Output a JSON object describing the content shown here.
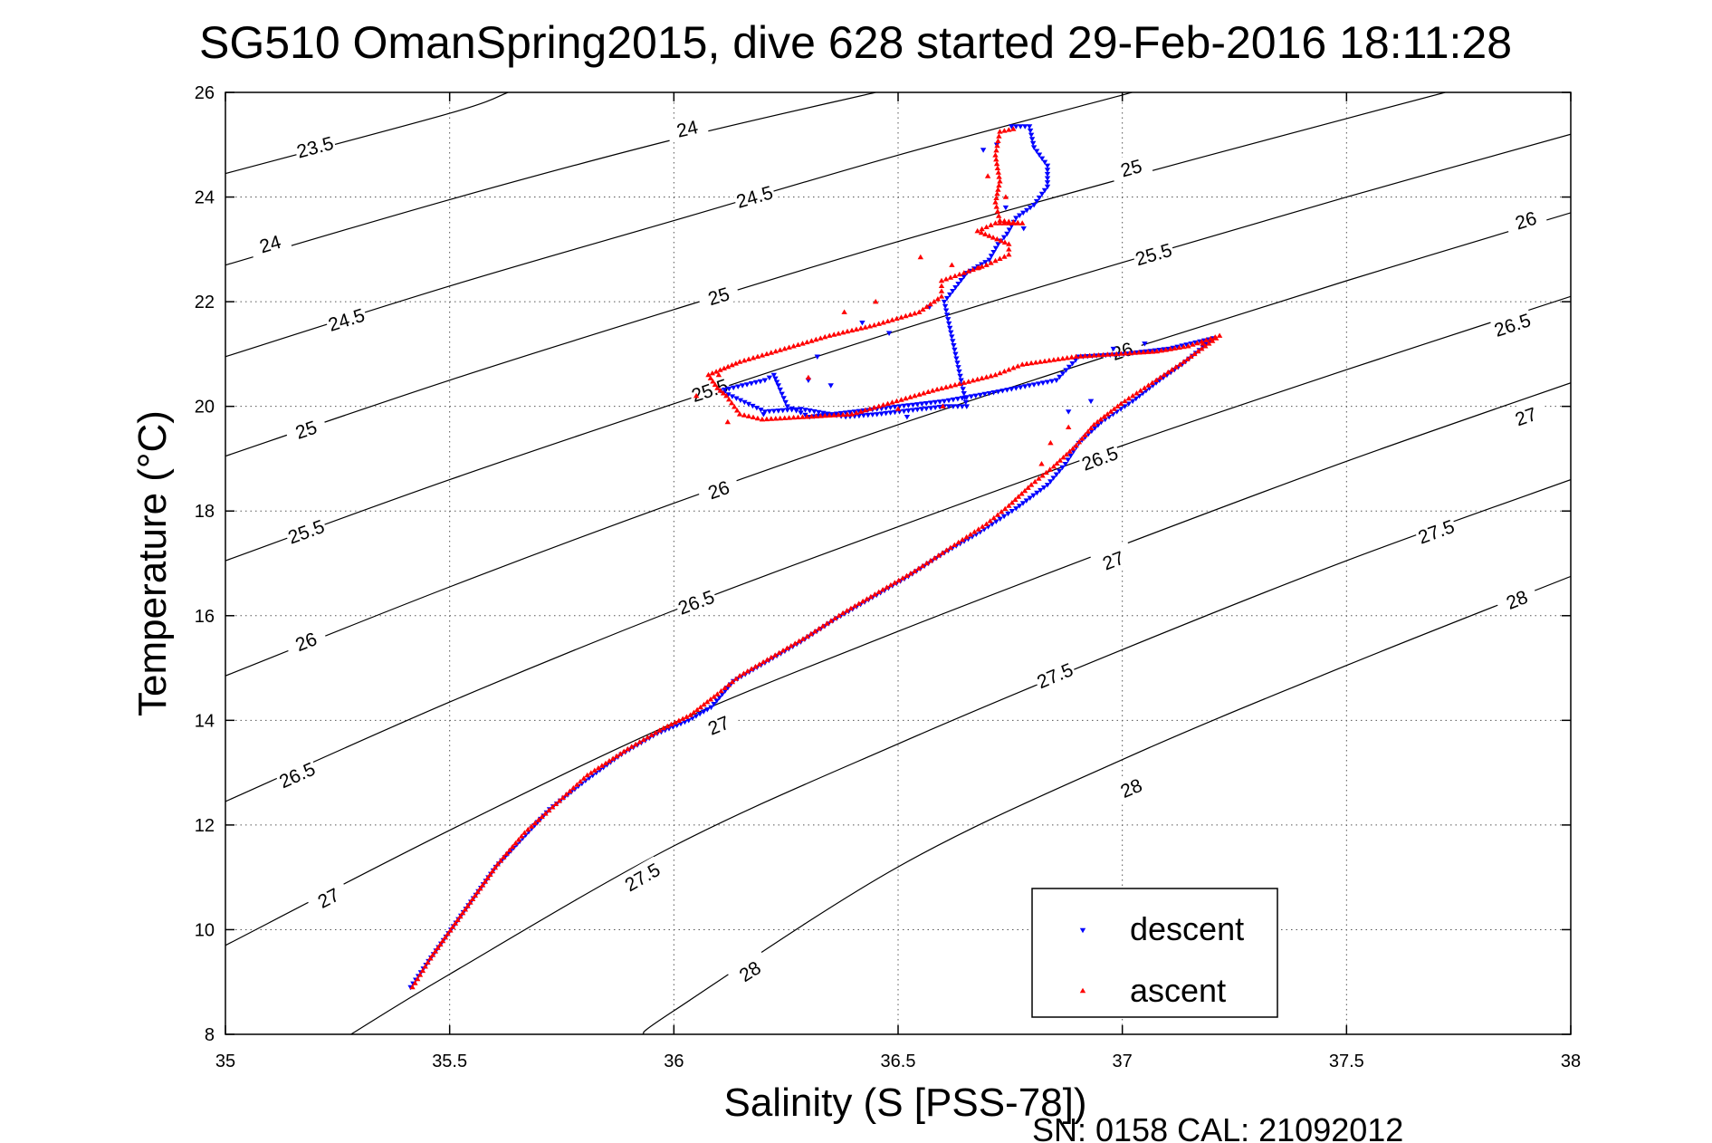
{
  "chart_data": {
    "type": "scatter",
    "title": "SG510 OmanSpring2015, dive 628 started 29-Feb-2016 18:11:28",
    "xlabel": "Salinity (S [PSS-78])",
    "ylabel": "Temperature (°C)",
    "xlim": [
      35,
      38
    ],
    "ylim": [
      8,
      26
    ],
    "xticks": [
      35,
      35.5,
      36,
      36.5,
      37,
      37.5,
      38
    ],
    "xtick_labels": [
      "35",
      "35.5",
      "36",
      "36.5",
      "37",
      "37.5",
      "38"
    ],
    "yticks": [
      8,
      10,
      12,
      14,
      16,
      18,
      20,
      22,
      24,
      26
    ],
    "ytick_labels": [
      "8",
      "10",
      "12",
      "14",
      "16",
      "18",
      "20",
      "22",
      "24",
      "26"
    ],
    "grid": true,
    "legend_position": "bottom-right",
    "footnote": "SN: 0158  CAL: 21092012",
    "density_contours": [
      {
        "level": "23.5",
        "points": [
          [
            35,
            24.45
          ],
          [
            35.5,
            25.6
          ],
          [
            35.63,
            26
          ]
        ],
        "labels": [
          [
            35.2,
            24.95
          ]
        ]
      },
      {
        "level": "24",
        "points": [
          [
            35,
            22.7
          ],
          [
            35.5,
            23.95
          ],
          [
            36,
            25.1
          ],
          [
            36.45,
            26
          ]
        ],
        "labels": [
          [
            35.1,
            23.1
          ],
          [
            36.03,
            25.3
          ]
        ]
      },
      {
        "level": "24.5",
        "points": [
          [
            35,
            20.95
          ],
          [
            35.5,
            22.3
          ],
          [
            36,
            23.55
          ],
          [
            36.5,
            24.8
          ],
          [
            37,
            25.95
          ],
          [
            37.02,
            26
          ]
        ],
        "labels": [
          [
            35.27,
            21.65
          ],
          [
            36.18,
            24.0
          ]
        ]
      },
      {
        "level": "25",
        "points": [
          [
            35,
            19.05
          ],
          [
            35.5,
            20.5
          ],
          [
            36,
            21.85
          ],
          [
            36.5,
            23.15
          ],
          [
            37,
            24.35
          ],
          [
            37.5,
            25.5
          ],
          [
            37.72,
            26
          ]
        ],
        "labels": [
          [
            35.18,
            19.55
          ],
          [
            36.1,
            22.1
          ],
          [
            37.02,
            24.55
          ]
        ]
      },
      {
        "level": "25.5",
        "points": [
          [
            35,
            17.05
          ],
          [
            35.5,
            18.6
          ],
          [
            36,
            20.05
          ],
          [
            36.5,
            21.45
          ],
          [
            37,
            22.75
          ],
          [
            37.5,
            24.0
          ],
          [
            38,
            25.2
          ]
        ],
        "labels": [
          [
            35.18,
            17.6
          ],
          [
            36.08,
            20.3
          ],
          [
            37.07,
            22.9
          ]
        ]
      },
      {
        "level": "26",
        "points": [
          [
            35,
            14.85
          ],
          [
            35.5,
            16.55
          ],
          [
            36,
            18.15
          ],
          [
            36.5,
            19.65
          ],
          [
            37,
            21.05
          ],
          [
            37.5,
            22.4
          ],
          [
            38,
            23.7
          ]
        ],
        "labels": [
          [
            35.18,
            15.5
          ],
          [
            36.1,
            18.4
          ],
          [
            37.0,
            21.05
          ],
          [
            37.9,
            23.55
          ]
        ]
      },
      {
        "level": "26.5",
        "points": [
          [
            35,
            12.45
          ],
          [
            35.5,
            14.35
          ],
          [
            36,
            16.1
          ],
          [
            36.5,
            17.7
          ],
          [
            37,
            19.25
          ],
          [
            37.5,
            20.7
          ],
          [
            38,
            22.1
          ]
        ],
        "labels": [
          [
            35.16,
            12.95
          ],
          [
            36.05,
            16.25
          ],
          [
            36.95,
            19.0
          ],
          [
            37.87,
            21.55
          ]
        ]
      },
      {
        "level": "27",
        "points": [
          [
            35,
            9.7
          ],
          [
            35.5,
            11.9
          ],
          [
            36,
            13.95
          ],
          [
            36.5,
            15.7
          ],
          [
            37,
            17.35
          ],
          [
            37.5,
            18.95
          ],
          [
            38,
            20.45
          ]
        ],
        "labels": [
          [
            35.23,
            10.6
          ],
          [
            36.1,
            13.9
          ],
          [
            36.98,
            17.05
          ],
          [
            37.9,
            19.8
          ]
        ]
      },
      {
        "level": "27.5",
        "points": [
          [
            35.28,
            8
          ],
          [
            35.5,
            9.15
          ],
          [
            36,
            11.6
          ],
          [
            36.5,
            13.55
          ],
          [
            37,
            15.35
          ],
          [
            37.5,
            17.05
          ],
          [
            38,
            18.6
          ]
        ],
        "labels": [
          [
            35.93,
            11.0
          ],
          [
            36.85,
            14.85
          ],
          [
            37.7,
            17.6
          ]
        ]
      },
      {
        "level": "28",
        "points": [
          [
            35.93,
            8
          ],
          [
            36,
            8.45
          ],
          [
            36.5,
            11.2
          ],
          [
            37,
            13.25
          ],
          [
            37.5,
            15.05
          ],
          [
            38,
            16.75
          ]
        ],
        "labels": [
          [
            36.17,
            9.2
          ],
          [
            37.02,
            12.7
          ],
          [
            37.88,
            16.3
          ]
        ]
      }
    ],
    "series": [
      {
        "name": "descent",
        "color": "#0000ff",
        "marker": "triangle-down",
        "path": [
          [
            35.41,
            8.9
          ],
          [
            35.45,
            9.4
          ],
          [
            35.5,
            10.0
          ],
          [
            35.55,
            10.6
          ],
          [
            35.6,
            11.2
          ],
          [
            35.66,
            11.75
          ],
          [
            35.72,
            12.3
          ],
          [
            35.8,
            12.85
          ],
          [
            35.88,
            13.35
          ],
          [
            35.96,
            13.75
          ],
          [
            36.03,
            14.0
          ],
          [
            36.08,
            14.25
          ],
          [
            36.13,
            14.75
          ],
          [
            36.2,
            15.1
          ],
          [
            36.28,
            15.5
          ],
          [
            36.36,
            15.95
          ],
          [
            36.44,
            16.35
          ],
          [
            36.52,
            16.75
          ],
          [
            36.6,
            17.2
          ],
          [
            36.68,
            17.6
          ],
          [
            36.76,
            18.05
          ],
          [
            36.83,
            18.5
          ],
          [
            36.87,
            18.9
          ],
          [
            36.9,
            19.3
          ],
          [
            36.95,
            19.7
          ],
          [
            37.02,
            20.1
          ],
          [
            37.08,
            20.5
          ],
          [
            37.13,
            20.8
          ],
          [
            37.2,
            21.3
          ],
          [
            37.1,
            21.1
          ],
          [
            37.0,
            21.0
          ],
          [
            36.9,
            20.95
          ],
          [
            36.85,
            20.5
          ],
          [
            36.7,
            20.25
          ],
          [
            36.6,
            20.1
          ],
          [
            36.5,
            20.0
          ],
          [
            36.4,
            19.9
          ],
          [
            36.3,
            19.8
          ],
          [
            36.25,
            20.0
          ],
          [
            36.23,
            20.4
          ],
          [
            36.22,
            20.6
          ],
          [
            36.2,
            20.5
          ],
          [
            36.15,
            20.4
          ],
          [
            36.1,
            20.3
          ],
          [
            36.2,
            19.9
          ],
          [
            36.28,
            19.95
          ],
          [
            36.38,
            19.8
          ],
          [
            36.45,
            19.85
          ],
          [
            36.55,
            19.95
          ],
          [
            36.6,
            20.0
          ],
          [
            36.65,
            20.0
          ],
          [
            36.6,
            22.0
          ],
          [
            36.65,
            22.55
          ],
          [
            36.7,
            22.8
          ],
          [
            36.72,
            23.1
          ],
          [
            36.74,
            23.3
          ],
          [
            36.76,
            23.6
          ],
          [
            36.8,
            23.85
          ],
          [
            36.83,
            24.2
          ],
          [
            36.83,
            24.6
          ],
          [
            36.8,
            24.95
          ],
          [
            36.79,
            25.35
          ],
          [
            36.75,
            25.35
          ]
        ],
        "scatter": [
          [
            36.57,
            21.9
          ],
          [
            36.48,
            21.4
          ],
          [
            36.42,
            21.6
          ],
          [
            36.32,
            20.95
          ],
          [
            36.52,
            19.8
          ],
          [
            36.3,
            20.5
          ],
          [
            36.78,
            23.4
          ],
          [
            36.74,
            23.8
          ],
          [
            36.72,
            25.0
          ],
          [
            36.69,
            24.9
          ],
          [
            36.88,
            19.9
          ],
          [
            36.93,
            20.1
          ],
          [
            36.98,
            21.1
          ],
          [
            37.05,
            21.2
          ],
          [
            36.2,
            19.85
          ],
          [
            36.35,
            20.4
          ]
        ]
      },
      {
        "name": "ascent",
        "color": "#ff0000",
        "marker": "triangle-up",
        "path": [
          [
            35.42,
            8.9
          ],
          [
            35.46,
            9.45
          ],
          [
            35.51,
            10.05
          ],
          [
            35.56,
            10.65
          ],
          [
            35.61,
            11.25
          ],
          [
            35.67,
            11.85
          ],
          [
            35.74,
            12.4
          ],
          [
            35.81,
            12.95
          ],
          [
            35.9,
            13.45
          ],
          [
            35.98,
            13.85
          ],
          [
            36.04,
            14.1
          ],
          [
            36.1,
            14.5
          ],
          [
            36.15,
            14.85
          ],
          [
            36.22,
            15.2
          ],
          [
            36.3,
            15.6
          ],
          [
            36.38,
            16.05
          ],
          [
            36.46,
            16.45
          ],
          [
            36.54,
            16.85
          ],
          [
            36.62,
            17.3
          ],
          [
            36.7,
            17.75
          ],
          [
            36.75,
            18.1
          ],
          [
            36.8,
            18.5
          ],
          [
            36.85,
            18.85
          ],
          [
            36.9,
            19.25
          ],
          [
            36.94,
            19.65
          ],
          [
            37.0,
            20.05
          ],
          [
            37.07,
            20.45
          ],
          [
            37.14,
            20.85
          ],
          [
            37.22,
            21.35
          ],
          [
            37.15,
            21.15
          ],
          [
            37.08,
            21.05
          ],
          [
            36.9,
            20.95
          ],
          [
            36.78,
            20.8
          ],
          [
            36.72,
            20.6
          ],
          [
            36.58,
            20.3
          ],
          [
            36.5,
            20.1
          ],
          [
            36.4,
            19.85
          ],
          [
            36.3,
            19.8
          ],
          [
            36.2,
            19.75
          ],
          [
            36.15,
            19.85
          ],
          [
            36.12,
            20.2
          ],
          [
            36.1,
            20.35
          ],
          [
            36.08,
            20.6
          ],
          [
            36.15,
            20.85
          ],
          [
            36.25,
            21.1
          ],
          [
            36.35,
            21.35
          ],
          [
            36.45,
            21.55
          ],
          [
            36.55,
            21.8
          ],
          [
            36.6,
            22.1
          ],
          [
            36.6,
            22.4
          ],
          [
            36.65,
            22.55
          ],
          [
            36.7,
            22.7
          ],
          [
            36.75,
            22.9
          ],
          [
            36.75,
            23.1
          ],
          [
            36.68,
            23.35
          ],
          [
            36.72,
            23.5
          ],
          [
            36.78,
            23.5
          ],
          [
            36.73,
            23.55
          ],
          [
            36.72,
            23.9
          ],
          [
            36.73,
            24.3
          ],
          [
            36.72,
            24.8
          ],
          [
            36.73,
            25.25
          ],
          [
            36.76,
            25.3
          ]
        ],
        "scatter": [
          [
            36.45,
            22.0
          ],
          [
            36.38,
            21.8
          ],
          [
            36.55,
            22.85
          ],
          [
            36.62,
            22.7
          ],
          [
            36.68,
            22.65
          ],
          [
            36.1,
            20.6
          ],
          [
            36.05,
            20.2
          ],
          [
            36.12,
            19.7
          ],
          [
            36.3,
            20.55
          ],
          [
            36.84,
            19.3
          ],
          [
            36.88,
            19.6
          ],
          [
            36.96,
            19.8
          ],
          [
            36.82,
            18.9
          ],
          [
            37.18,
            21.2
          ],
          [
            36.6,
            20.0
          ],
          [
            36.5,
            19.95
          ],
          [
            36.74,
            24.0
          ],
          [
            36.7,
            24.4
          ]
        ]
      }
    ]
  }
}
